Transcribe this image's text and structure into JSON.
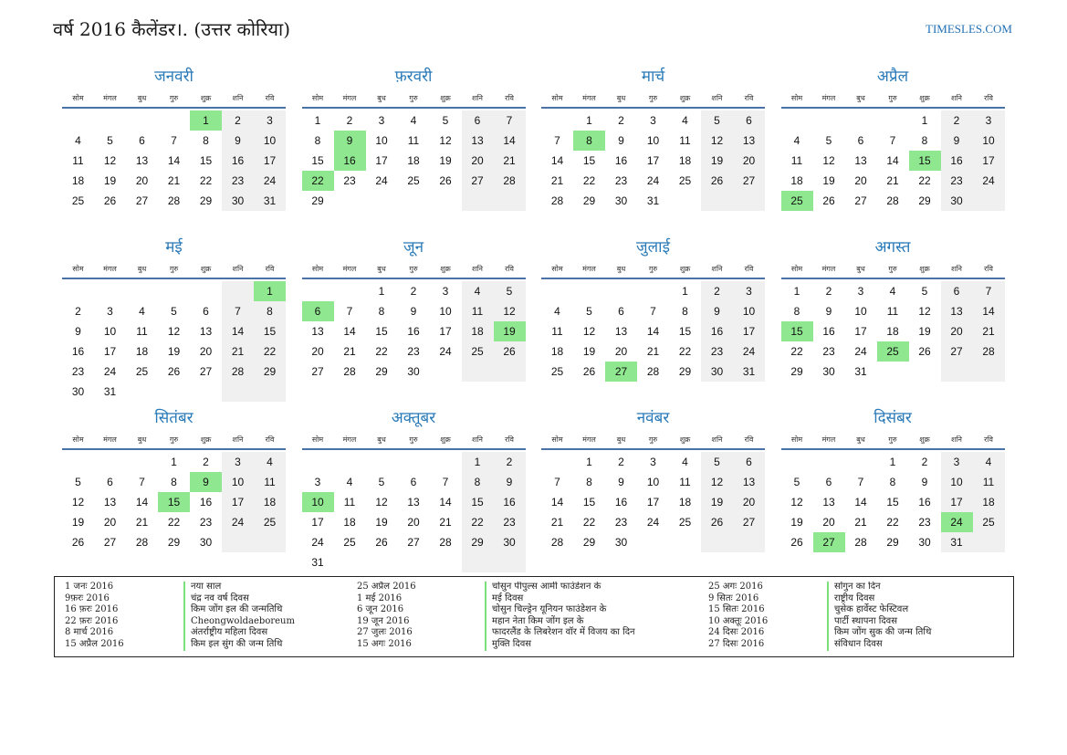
{
  "header": {
    "title": "वर्ष 2016 कैलेंडर।. (उत्तर कोरिया)",
    "site": "TIMESLES.COM"
  },
  "weekdays": [
    "सोम",
    "मंगल",
    "बुध",
    "गुरु",
    "शुक्र",
    "शनि",
    "रवि"
  ],
  "months": [
    {
      "name": "जनवरी",
      "offset": 4,
      "days": 31,
      "holidays": [
        1
      ]
    },
    {
      "name": "फ़रवरी",
      "offset": 0,
      "days": 29,
      "holidays": [
        9,
        16,
        22
      ]
    },
    {
      "name": "मार्च",
      "offset": 1,
      "days": 31,
      "holidays": [
        8
      ]
    },
    {
      "name": "अप्रैल",
      "offset": 4,
      "days": 30,
      "holidays": [
        15,
        25
      ]
    },
    {
      "name": "मई",
      "offset": 6,
      "days": 31,
      "holidays": [
        1
      ]
    },
    {
      "name": "जून",
      "offset": 2,
      "days": 30,
      "holidays": [
        6,
        19
      ]
    },
    {
      "name": "जुलाई",
      "offset": 4,
      "days": 31,
      "holidays": [
        27
      ]
    },
    {
      "name": "अगस्त",
      "offset": 0,
      "days": 31,
      "holidays": [
        15,
        25
      ]
    },
    {
      "name": "सितंबर",
      "offset": 3,
      "days": 30,
      "holidays": [
        9,
        15
      ]
    },
    {
      "name": "अक्तूबर",
      "offset": 5,
      "days": 31,
      "holidays": [
        10
      ]
    },
    {
      "name": "नवंबर",
      "offset": 1,
      "days": 30,
      "holidays": []
    },
    {
      "name": "दिसंबर",
      "offset": 3,
      "days": 31,
      "holidays": [
        24,
        27
      ]
    }
  ],
  "legend": {
    "col1_dates": [
      "1 जनः 2016",
      "9फ़रः 2016",
      "16 फ़रः 2016",
      "22 फ़रः 2016",
      "8 मार्च 2016",
      "15 अप्रैल 2016"
    ],
    "col1_names": [
      "नया साल",
      "चंद्र नव वर्ष दिवस",
      "किम जोंग इल की जन्मतिथि",
      "Cheongwoldaeboreum",
      "अंतर्राष्ट्रीय महिला दिवस",
      "किम इल सुंग की जन्म तिथि"
    ],
    "col2_dates": [
      "25 अप्रैल 2016",
      "1 मई 2016",
      "6 जून 2016",
      "19 जून 2016",
      "27 जुलः 2016",
      "15 अगः 2016"
    ],
    "col2_names": [
      "चोसुन पीपुल्स आर्मी फाउंडेशन के",
      "मई दिवस",
      "चोसुन चिल्ड्रेन यूनियन फाउंडेशन के",
      "महान नेता किम जोंग इल के",
      "फादरलैंड के लिबरेशन वॉर में विजय का दिन",
      "मुक्ति दिवस"
    ],
    "col3_dates": [
      "25 अगः 2016",
      "9 सितः 2016",
      "15 सितः 2016",
      "10 अक्तूः 2016",
      "24 दिसः 2016",
      "27 दिसः 2016"
    ],
    "col3_names": [
      "सोंगुन का दिन",
      "राष्ट्रीय दिवस",
      "चुसेक हार्वेस्ट फेस्टिवल",
      "पार्टी स्थापना दिवस",
      "किम जोंग सुक की जन्म तिथि",
      "संविधान दिवस"
    ]
  },
  "colors": {
    "holiday": "#8fe88f",
    "weekend": "#f0f0f0",
    "month_title": "#2a7ab8",
    "rule": "#4b72a6"
  }
}
